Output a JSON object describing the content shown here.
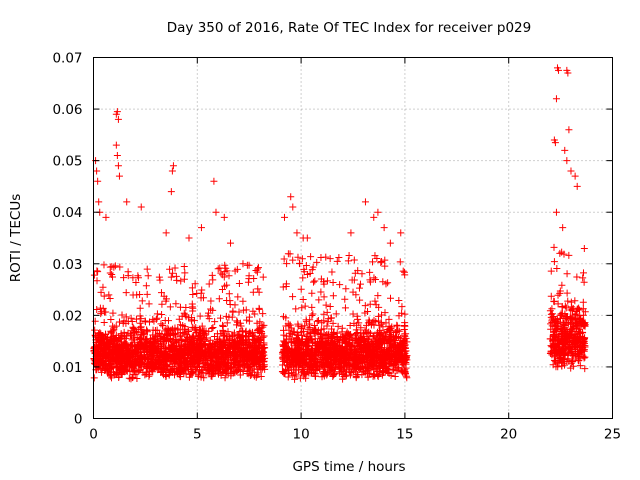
{
  "chart_data": {
    "type": "scatter",
    "title": "Day 350 of 2016, Rate Of TEC Index for receiver p029",
    "xlabel": "GPS time / hours",
    "ylabel": "ROTI / TECUs",
    "xlim": [
      0,
      25
    ],
    "ylim": [
      0,
      0.07
    ],
    "x_ticks": [
      0,
      5,
      10,
      15,
      20,
      25
    ],
    "y_ticks": [
      0,
      0.01,
      0.02,
      0.03,
      0.04,
      0.05,
      0.06,
      0.07
    ],
    "x_tick_labels": [
      "0",
      "5",
      "10",
      "15",
      "20",
      "25"
    ],
    "y_tick_labels": [
      "0",
      "0.01",
      "0.02",
      "0.03",
      "0.04",
      "0.05",
      "0.06",
      "0.07"
    ],
    "grid": true,
    "marker": "+",
    "color": "#ff0000",
    "data_segments": [
      {
        "x_start": 0.0,
        "x_end": 8.25,
        "base": 0.01,
        "spread": 0.006,
        "upper_envelope": 0.03
      },
      {
        "x_start": 9.1,
        "x_end": 15.1,
        "base": 0.01,
        "spread": 0.006,
        "upper_envelope": 0.032
      },
      {
        "x_start": 22.0,
        "x_end": 23.7,
        "base": 0.012,
        "spread": 0.008,
        "upper_envelope": 0.035
      }
    ],
    "series": [
      {
        "name": "ROTI",
        "points": [
          [
            0.1,
            0.05
          ],
          [
            0.15,
            0.048
          ],
          [
            0.2,
            0.046
          ],
          [
            0.25,
            0.042
          ],
          [
            0.3,
            0.04
          ],
          [
            0.6,
            0.039
          ],
          [
            1.1,
            0.059
          ],
          [
            1.15,
            0.0595
          ],
          [
            1.2,
            0.058
          ],
          [
            1.1,
            0.053
          ],
          [
            1.15,
            0.051
          ],
          [
            1.2,
            0.049
          ],
          [
            1.25,
            0.047
          ],
          [
            1.6,
            0.042
          ],
          [
            2.3,
            0.041
          ],
          [
            3.5,
            0.036
          ],
          [
            3.75,
            0.044
          ],
          [
            3.8,
            0.048
          ],
          [
            3.85,
            0.049
          ],
          [
            4.6,
            0.035
          ],
          [
            5.2,
            0.037
          ],
          [
            5.8,
            0.046
          ],
          [
            5.9,
            0.04
          ],
          [
            6.3,
            0.039
          ],
          [
            6.6,
            0.034
          ],
          [
            7.2,
            0.03
          ],
          [
            7.9,
            0.029
          ],
          [
            9.2,
            0.039
          ],
          [
            9.5,
            0.043
          ],
          [
            9.6,
            0.041
          ],
          [
            9.8,
            0.036
          ],
          [
            10.1,
            0.035
          ],
          [
            10.3,
            0.035
          ],
          [
            11.4,
            0.031
          ],
          [
            12.4,
            0.036
          ],
          [
            13.1,
            0.042
          ],
          [
            13.5,
            0.039
          ],
          [
            13.7,
            0.04
          ],
          [
            14.0,
            0.037
          ],
          [
            14.3,
            0.034
          ],
          [
            14.8,
            0.036
          ],
          [
            22.2,
            0.054
          ],
          [
            22.25,
            0.0535
          ],
          [
            22.3,
            0.062
          ],
          [
            22.35,
            0.068
          ],
          [
            22.4,
            0.0675
          ],
          [
            22.8,
            0.0675
          ],
          [
            22.85,
            0.067
          ],
          [
            22.9,
            0.056
          ],
          [
            22.7,
            0.052
          ],
          [
            22.8,
            0.05
          ],
          [
            23.0,
            0.048
          ],
          [
            23.2,
            0.047
          ],
          [
            23.3,
            0.045
          ],
          [
            22.3,
            0.04
          ],
          [
            22.6,
            0.037
          ]
        ]
      }
    ]
  }
}
